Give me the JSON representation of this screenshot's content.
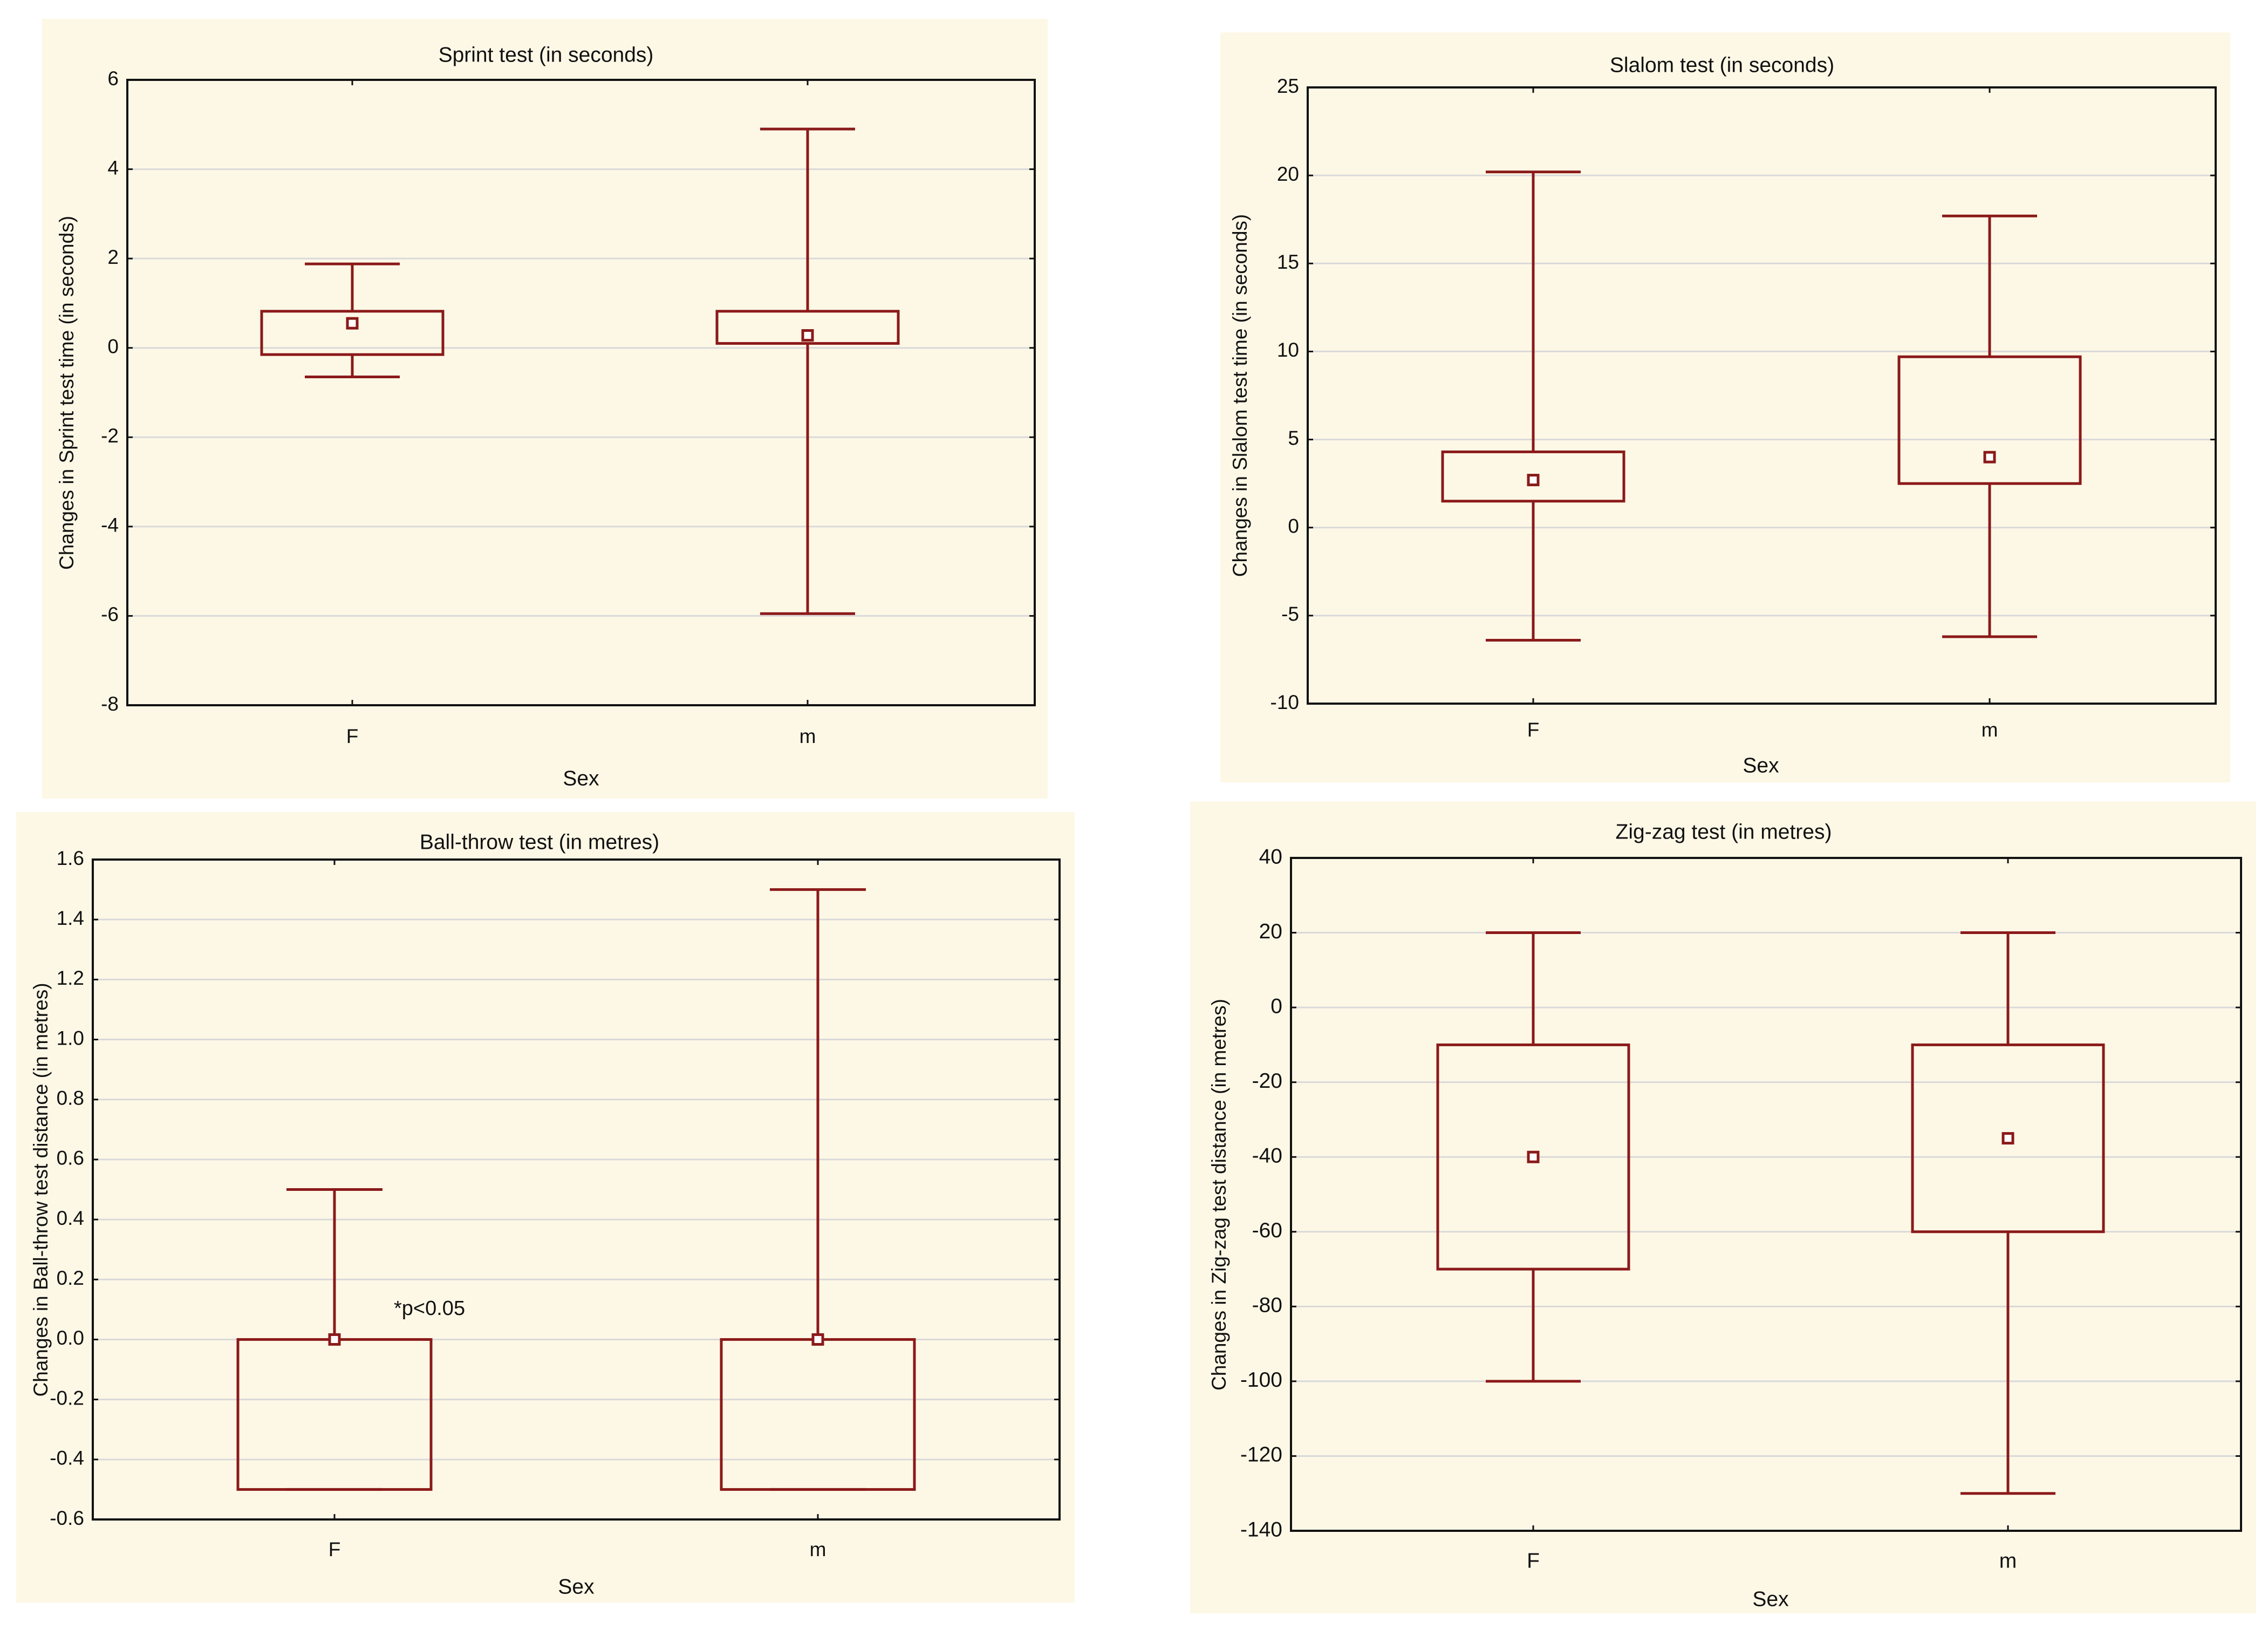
{
  "colors": {
    "box": "#8b1a1a",
    "grid": "#d9d9d9",
    "panel_bg": "#fdf8e6",
    "frame": "#111111"
  },
  "chart_data": [
    {
      "type": "box",
      "title": "Sprint test (in seconds)",
      "xlabel": "Sex",
      "ylabel": "Changes in Sprint test time (in seconds)",
      "ylim": [
        -8,
        6
      ],
      "yticks": [
        6,
        4,
        2,
        0,
        -2,
        -4,
        -6,
        -8
      ],
      "categories": [
        "F",
        "m"
      ],
      "boxes": [
        {
          "category": "F",
          "whisker_low": -0.65,
          "q1": -0.15,
          "median": 0.55,
          "q3": 0.82,
          "whisker_high": 1.88
        },
        {
          "category": "m",
          "whisker_low": -5.95,
          "q1": 0.1,
          "median": 0.28,
          "q3": 0.82,
          "whisker_high": 4.9
        }
      ],
      "annotations": []
    },
    {
      "type": "box",
      "title": "Slalom test (in seconds)",
      "xlabel": "Sex",
      "ylabel": "Changes in Slalom test time (in seconds)",
      "ylim": [
        -10,
        25
      ],
      "yticks": [
        25,
        20,
        15,
        10,
        5,
        0,
        -5,
        -10
      ],
      "categories": [
        "F",
        "m"
      ],
      "boxes": [
        {
          "category": "F",
          "whisker_low": -6.4,
          "q1": 1.5,
          "median": 2.7,
          "q3": 4.3,
          "whisker_high": 20.2
        },
        {
          "category": "m",
          "whisker_low": -6.2,
          "q1": 2.5,
          "median": 4.0,
          "q3": 9.7,
          "whisker_high": 17.7
        }
      ],
      "annotations": []
    },
    {
      "type": "box",
      "title": "Ball-throw test (in metres)",
      "xlabel": "Sex",
      "ylabel": "Changes in Ball-throw test distance (in metres)",
      "ylim": [
        -0.6,
        1.6
      ],
      "yticks": [
        "1.6",
        "1.4",
        "1.2",
        "1.0",
        "0.8",
        "0.6",
        "0.4",
        "0.2",
        "0.0",
        "-0.2",
        "-0.4",
        "-0.6"
      ],
      "categories": [
        "F",
        "m"
      ],
      "boxes": [
        {
          "category": "F",
          "whisker_low": -0.5,
          "q1": -0.5,
          "median": 0.0,
          "q3": 0.0,
          "whisker_high": 0.5
        },
        {
          "category": "m",
          "whisker_low": -0.5,
          "q1": -0.5,
          "median": 0.0,
          "q3": 0.0,
          "whisker_high": 1.5
        }
      ],
      "annotations": [
        {
          "text": "*p<0.05",
          "category": "F",
          "y": 0.1
        }
      ]
    },
    {
      "type": "box",
      "title": "Zig-zag test (in metres)",
      "xlabel": "Sex",
      "ylabel": "Changes in Zig-zag test distance  (in metres)",
      "ylim": [
        -140,
        40
      ],
      "yticks": [
        40,
        20,
        0,
        -20,
        -40,
        -60,
        -80,
        -100,
        -120,
        -140
      ],
      "categories": [
        "F",
        "m"
      ],
      "boxes": [
        {
          "category": "F",
          "whisker_low": -100,
          "q1": -70,
          "median": -40,
          "q3": -10,
          "whisker_high": 20
        },
        {
          "category": "m",
          "whisker_low": -130,
          "q1": -60,
          "median": -35,
          "q3": -10,
          "whisker_high": 20
        }
      ],
      "annotations": []
    }
  ]
}
